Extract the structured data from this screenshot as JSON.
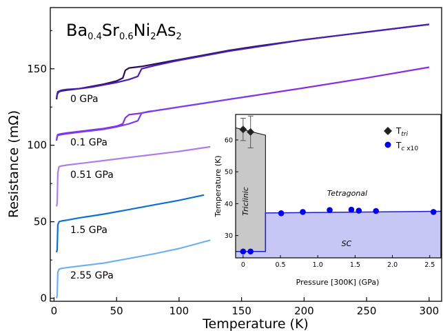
{
  "chart_data": [
    {
      "type": "line",
      "title": "Ba0.4Sr0.6Ni2As2",
      "title_parts": {
        "p1": "Ba",
        "s1": "0.4",
        "p2": "Sr",
        "s2": "0.6",
        "p3": "Ni",
        "s3": "2",
        "p4": "As",
        "s4": "2"
      },
      "xlabel": "Temperature (K)",
      "ylabel": "Resistance (mΩ)",
      "xlim": [
        -3,
        310
      ],
      "ylim": [
        -2,
        190
      ],
      "xticks": [
        0,
        50,
        100,
        150,
        200,
        250,
        300
      ],
      "xtick_labels": [
        "0",
        "50",
        "100",
        "150",
        "200",
        "250",
        "300"
      ],
      "yticks": [
        0,
        50,
        100,
        150
      ],
      "ytick_labels": [
        "0",
        "50",
        "100",
        "150"
      ],
      "series": [
        {
          "name": "0 GPa",
          "color": "#2a0a5e",
          "x": [
            2,
            2.5,
            3,
            4,
            6,
            10,
            20,
            30,
            40,
            50,
            55,
            57,
            60,
            65,
            70,
            80,
            100,
            120,
            140,
            160,
            200,
            250,
            300
          ],
          "y": [
            130,
            133,
            134,
            135,
            135.5,
            136,
            137,
            138.5,
            140,
            142,
            144,
            149,
            150.5,
            151,
            151.5,
            153,
            156,
            159,
            162,
            164.5,
            169,
            174,
            179
          ]
        },
        {
          "name": "",
          "color": "#4b1fb0",
          "x": [
            2,
            2.5,
            3,
            6,
            10,
            20,
            30,
            40,
            50,
            60,
            67,
            70,
            75,
            80,
            100,
            120,
            140,
            160,
            200,
            250,
            300
          ],
          "y": [
            131,
            133.5,
            135,
            136,
            136.5,
            137,
            138,
            139.5,
            141,
            143,
            145,
            150,
            151,
            152,
            155.5,
            158.5,
            161.5,
            164,
            169,
            174,
            179
          ]
        },
        {
          "name": "0.1 GPa",
          "color": "#8a2be2",
          "x": [
            2,
            2.5,
            3,
            6,
            10,
            20,
            30,
            40,
            50,
            55,
            57,
            60,
            70,
            80,
            100,
            120,
            140,
            160,
            180,
            200,
            250,
            300
          ],
          "y": [
            103,
            106,
            107,
            107.5,
            108,
            109,
            110,
            111,
            112.5,
            114,
            118,
            120,
            121,
            122.5,
            125,
            127.5,
            130,
            132.5,
            135,
            137.5,
            144,
            151
          ]
        },
        {
          "name": "",
          "color": "#7a3df0",
          "x": [
            2,
            3,
            6,
            10,
            20,
            30,
            40,
            50,
            60,
            67,
            70,
            75,
            80,
            100,
            120,
            140,
            160
          ],
          "y": [
            104,
            106.5,
            107,
            107.5,
            108.5,
            109.5,
            110.5,
            112,
            114,
            116,
            121,
            122,
            122.5,
            125,
            127.5,
            130,
            132.5
          ]
        },
        {
          "name": "0.51 GPa",
          "color": "#b07ce8",
          "x": [
            2,
            2.5,
            3,
            4,
            6,
            10,
            20,
            40,
            60,
            80,
            100,
            125
          ],
          "y": [
            60,
            62,
            82,
            86,
            86.5,
            87,
            88,
            90,
            92,
            94,
            96,
            99
          ]
        },
        {
          "name": "1.5 GPa",
          "color": "#0d6fd6",
          "x": [
            2,
            2.5,
            3,
            4,
            6,
            10,
            20,
            40,
            60,
            80,
            100,
            120
          ],
          "y": [
            30,
            32,
            48,
            50,
            50.5,
            51,
            52.5,
            55,
            58,
            61,
            64,
            67.5
          ]
        },
        {
          "name": "2.55 GPa",
          "color": "#6fb0f0",
          "x": [
            2,
            2.5,
            3,
            4,
            6,
            10,
            20,
            40,
            60,
            80,
            100,
            125
          ],
          "y": [
            0,
            2,
            17,
            19,
            19.5,
            20,
            21,
            23,
            26,
            29,
            32.5,
            38
          ]
        }
      ]
    },
    {
      "type": "scatter",
      "xlabel": "Pressure [300K] (GPa)",
      "ylabel": "Temperature (K)",
      "xlim": [
        -0.1,
        2.65
      ],
      "ylim": [
        23,
        68
      ],
      "xticks": [
        0,
        0.5,
        1.0,
        1.5,
        2.0,
        2.5
      ],
      "xtick_labels": [
        "0",
        "0.5",
        "1.0",
        "1.5",
        "2.0",
        "2.5"
      ],
      "yticks": [
        30,
        40,
        50,
        60
      ],
      "ytick_labels": [
        "30",
        "40",
        "50",
        "60"
      ],
      "regions": {
        "triclinic": "Triclinic",
        "tetragonal": "Tetragonal",
        "sc": "SC"
      },
      "legend": {
        "tri_label": "T",
        "tri_sub": "tri",
        "tc_label": "T",
        "tc_sub": "c",
        "tc_suffix": "x10"
      },
      "legend_position": "top-right",
      "t_tri": {
        "color": "#222222",
        "points": [
          {
            "x": 0.0,
            "y": 63.3,
            "err": 3.5
          },
          {
            "x": 0.1,
            "y": 62.5,
            "err": 5.0
          }
        ]
      },
      "t_c": {
        "color": "#0000ee",
        "points": [
          {
            "x": 0.0,
            "y": 25.0
          },
          {
            "x": 0.1,
            "y": 25.0
          },
          {
            "x": 0.51,
            "y": 37.0
          },
          {
            "x": 0.8,
            "y": 37.4
          },
          {
            "x": 1.16,
            "y": 38.0
          },
          {
            "x": 1.45,
            "y": 38.1
          },
          {
            "x": 1.55,
            "y": 37.8
          },
          {
            "x": 1.78,
            "y": 37.7
          },
          {
            "x": 2.55,
            "y": 37.4
          }
        ]
      },
      "boundary": {
        "x_step": 0.3,
        "tri_top_left": 63.8,
        "tri_top_right": 61.5,
        "sc_low": 25.0,
        "sc_high_left": 37.1,
        "sc_high_right": 37.6
      },
      "colors": {
        "triclinic_fill": "#c8c8c8",
        "sc_fill": "#c7c7f5",
        "sc_line": "#1a1ad6"
      }
    }
  ]
}
